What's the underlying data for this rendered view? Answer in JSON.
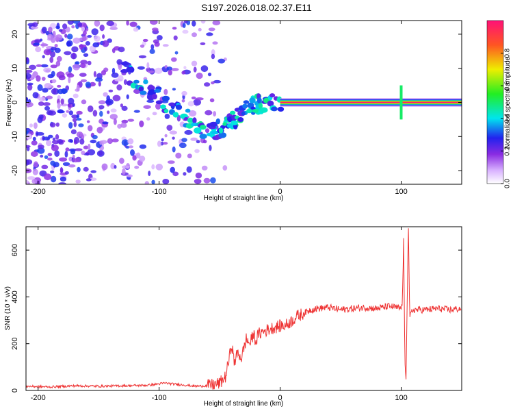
{
  "title": "S197.2026.018.02.37.E11",
  "chart_data": [
    {
      "type": "heatmap",
      "title": "S197.2026.018.02.37.E11",
      "xlabel": "Height of straight line (km)",
      "ylabel": "Frequency (Hz)",
      "xlim": [
        -210,
        150
      ],
      "ylim": [
        -24,
        24
      ],
      "x_ticks": [
        -200,
        -100,
        0,
        100
      ],
      "y_ticks": [
        -20,
        -10,
        0,
        10,
        20
      ],
      "colorbar": {
        "label": "Normalized spectral amplitude",
        "range": [
          0.0,
          1.0
        ],
        "ticks": [
          0.0,
          0.2,
          0.4,
          0.6,
          0.8
        ]
      },
      "features": [
        {
          "name": "noise",
          "x_range": [
            -210,
            -60
          ],
          "freq_range": [
            -24,
            24
          ],
          "amplitude": 0.25
        },
        {
          "name": "dispersive-trace",
          "points": [
            [
              -130,
              10
            ],
            [
              -110,
              4
            ],
            [
              -90,
              -2
            ],
            [
              -70,
              -6
            ],
            [
              -55,
              -9
            ],
            [
              -45,
              -6
            ],
            [
              -35,
              -4
            ],
            [
              -25,
              -1
            ],
            [
              -15,
              0
            ],
            [
              0,
              0.5
            ]
          ],
          "amplitude": 0.35
        },
        {
          "name": "carrier-line",
          "x_range": [
            0,
            150
          ],
          "frequency": 0,
          "amplitude": 1.0
        },
        {
          "name": "spike",
          "x": 100,
          "freq_range": [
            -5,
            5
          ],
          "amplitude": 0.5
        }
      ]
    },
    {
      "type": "line",
      "xlabel": "Height of straight line (km)",
      "ylabel": "SNR (10 * v/v)",
      "xlim": [
        -210,
        150
      ],
      "ylim": [
        0,
        700
      ],
      "x_ticks": [
        -200,
        -100,
        0,
        100
      ],
      "y_ticks": [
        0,
        200,
        400,
        600
      ],
      "series": [
        {
          "name": "SNR",
          "color": "#ee3333",
          "x": [
            -210,
            -190,
            -170,
            -150,
            -130,
            -110,
            -100,
            -95,
            -90,
            -80,
            -70,
            -60,
            -50,
            -45,
            -42,
            -40,
            -38,
            -35,
            -32,
            -30,
            -28,
            -25,
            -22,
            -20,
            -18,
            -15,
            -10,
            -5,
            0,
            5,
            10,
            15,
            20,
            25,
            30,
            40,
            50,
            60,
            70,
            80,
            90,
            95,
            100,
            101,
            102,
            103,
            104,
            105,
            106,
            107,
            108,
            110,
            120,
            130,
            140,
            150
          ],
          "y": [
            18,
            15,
            20,
            18,
            20,
            22,
            28,
            32,
            28,
            24,
            18,
            20,
            30,
            60,
            140,
            200,
            120,
            160,
            140,
            180,
            220,
            200,
            240,
            210,
            240,
            250,
            260,
            270,
            275,
            280,
            300,
            320,
            330,
            345,
            350,
            355,
            345,
            350,
            355,
            350,
            360,
            355,
            350,
            380,
            650,
            120,
            60,
            400,
            700,
            300,
            330,
            345,
            345,
            350,
            345,
            350
          ]
        }
      ]
    }
  ]
}
